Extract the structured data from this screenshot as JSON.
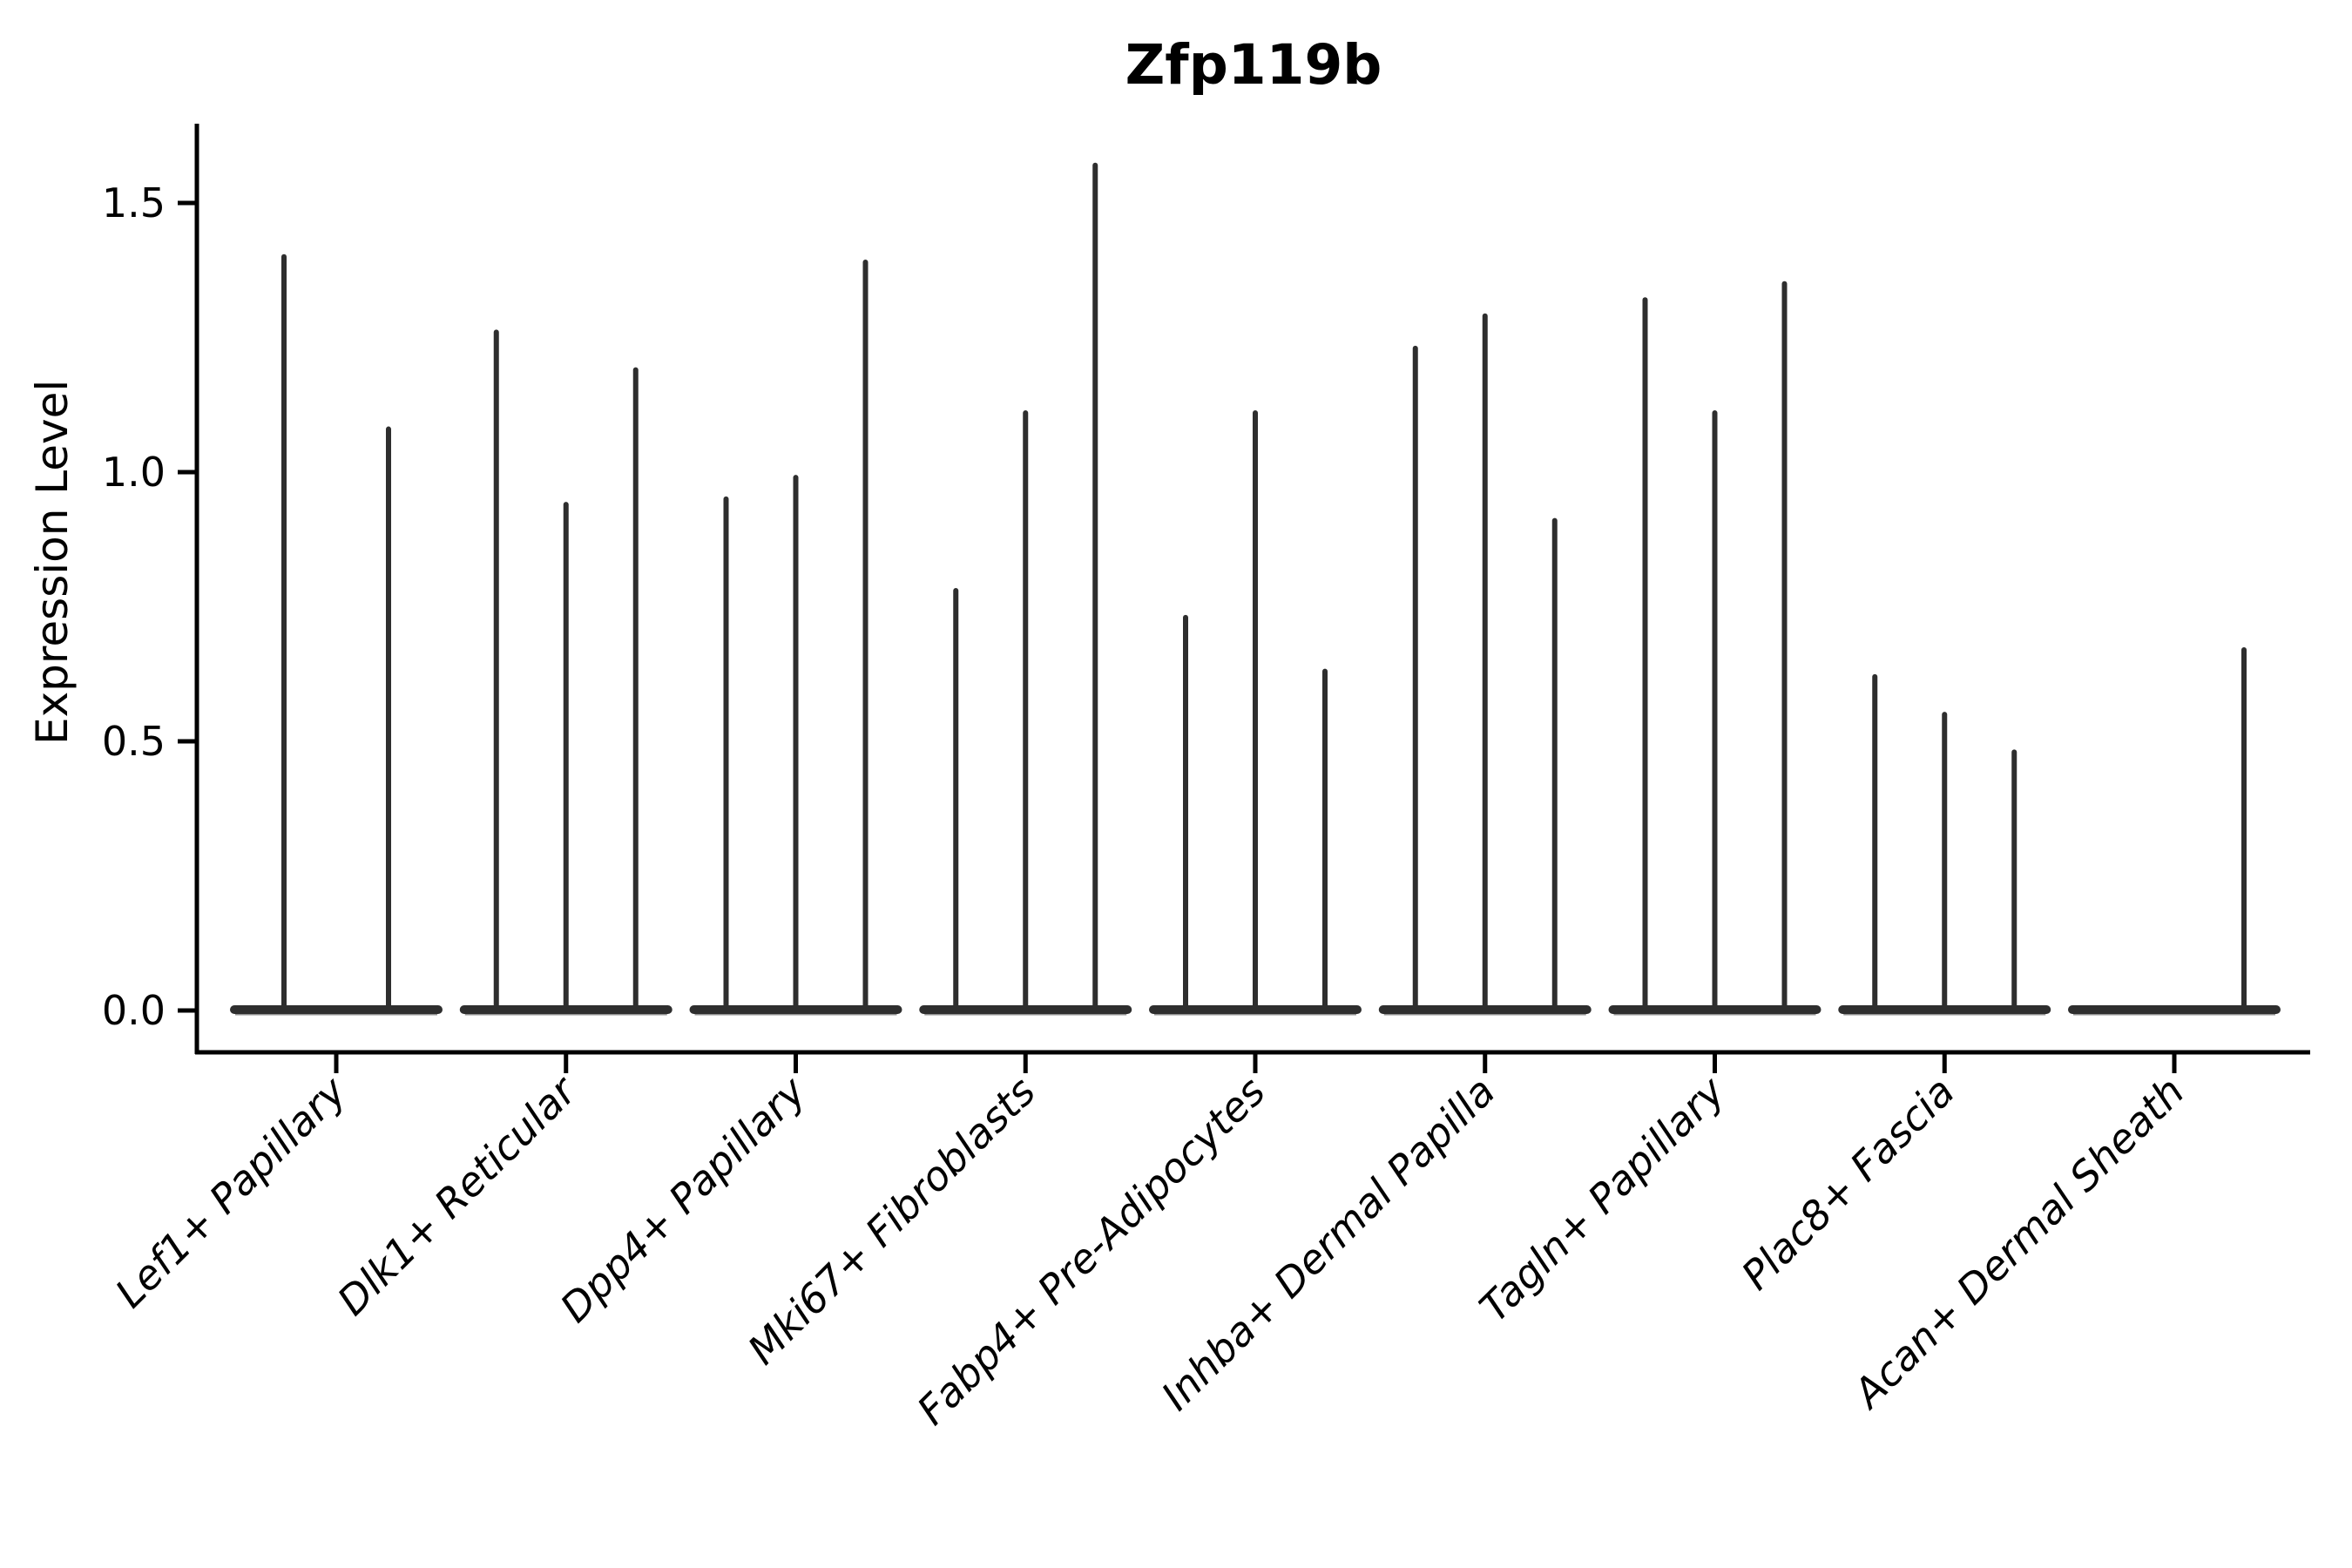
{
  "title": "Zfp119b",
  "y_axis": {
    "label": "Expression Level",
    "tick_labels": [
      "0.0",
      "0.5",
      "1.0",
      "1.5"
    ]
  },
  "colors": {
    "violin": "#2e2e2e",
    "violin_underline": "#8f8f8f",
    "axis": "#000000",
    "text": "#000000",
    "background": "#ffffff"
  },
  "chart_data": {
    "type": "violin",
    "title": "Zfp119b",
    "xlabel": "",
    "ylabel": "Expression Level",
    "ylim": [
      -0.08,
      1.66
    ],
    "yticks": [
      0.0,
      0.5,
      1.0,
      1.5
    ],
    "grid": false,
    "legend": "none",
    "xtick_rotation": 45,
    "xtick_style": "italic",
    "description": "Each category shows 2-3 extremely thin violins (spikes) rising from a flat zero-expression baseline; values are the maximum expression level reached by each violin spike.",
    "categories": [
      "Lef1+ Papillary",
      "Dlk1+ Reticular",
      "Dpp4+ Papillary",
      "Mki67+ Fibroblasts",
      "Fabp4+ Pre-Adipocytes",
      "Inhba+ Dermal Papilla",
      "Tagln+ Papillary",
      "Plac8+ Fascia",
      "Acan+ Dermal Sheath"
    ],
    "groups": [
      {
        "label": "Lef1+ Papillary",
        "violin_peaks": [
          1.4,
          1.08
        ]
      },
      {
        "label": "Dlk1+ Reticular",
        "violin_peaks": [
          1.26,
          0.94,
          1.19
        ]
      },
      {
        "label": "Dpp4+ Papillary",
        "violin_peaks": [
          0.95,
          0.99,
          1.39
        ]
      },
      {
        "label": "Mki67+ Fibroblasts",
        "violin_peaks": [
          0.78,
          1.11,
          1.57
        ]
      },
      {
        "label": "Fabp4+ Pre-Adipocytes",
        "violin_peaks": [
          0.73,
          1.11,
          0.63
        ]
      },
      {
        "label": "Inhba+ Dermal Papilla",
        "violin_peaks": [
          1.23,
          1.29,
          0.91
        ]
      },
      {
        "label": "Tagln+ Papillary",
        "violin_peaks": [
          1.32,
          1.11,
          1.35
        ]
      },
      {
        "label": "Plac8+ Fascia",
        "violin_peaks": [
          0.62,
          0.55,
          0.48
        ]
      },
      {
        "label": "Acan+ Dermal Sheath",
        "violin_peaks": [
          0.0,
          0.0,
          0.67
        ]
      }
    ]
  }
}
